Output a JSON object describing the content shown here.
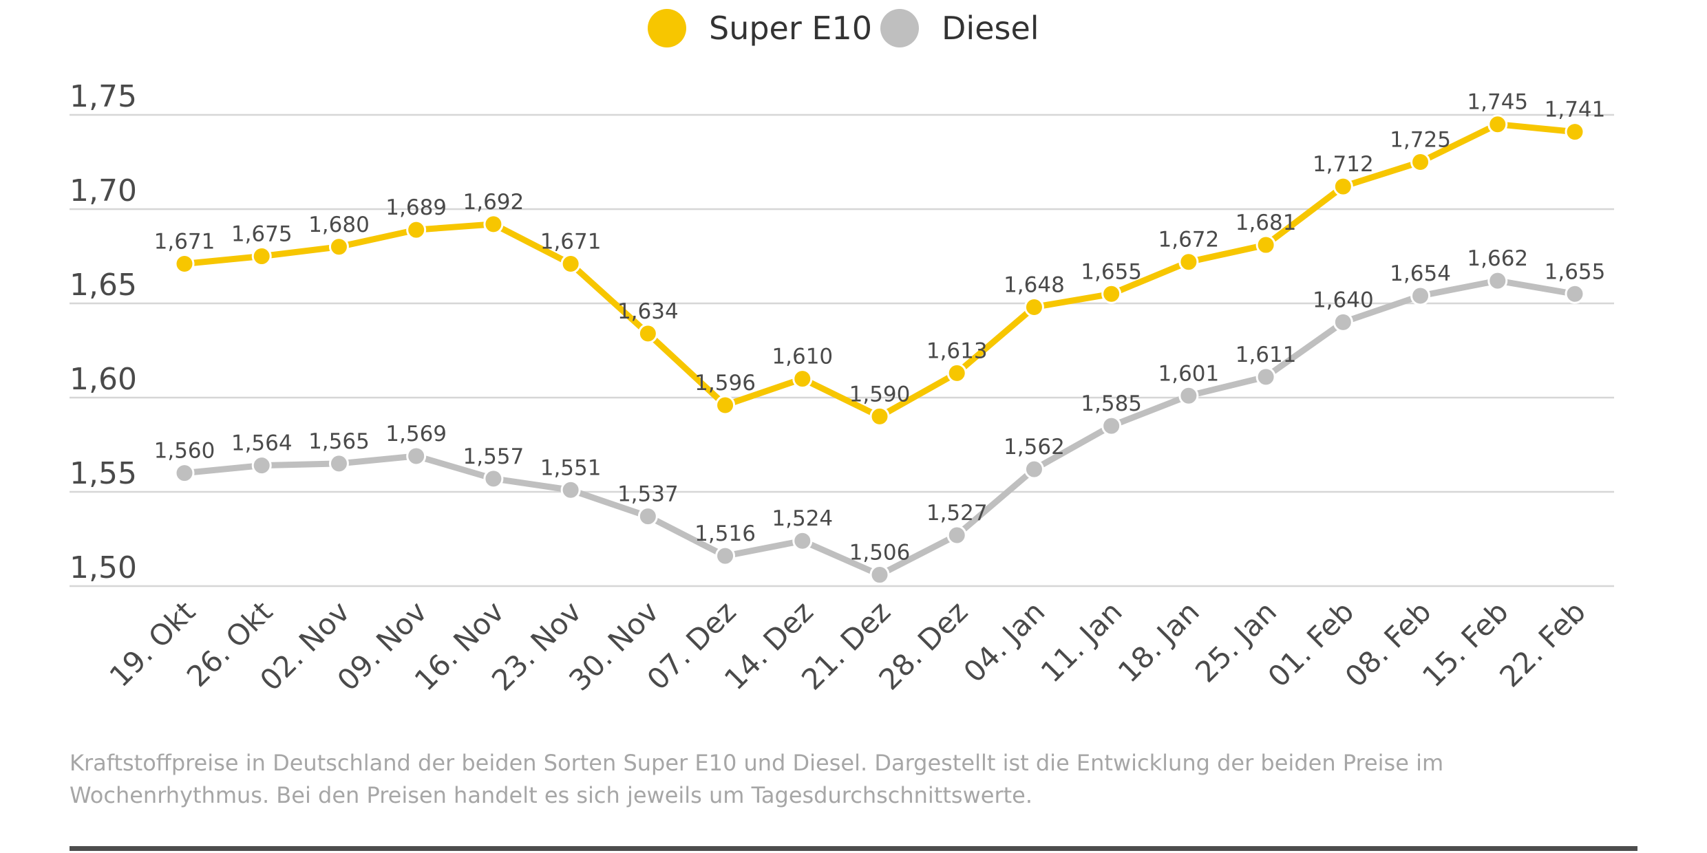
{
  "chart_data": {
    "type": "line",
    "categories": [
      "19. Okt",
      "26. Okt",
      "02. Nov",
      "09. Nov",
      "16. Nov",
      "23. Nov",
      "30. Nov",
      "07. Dez",
      "14. Dez",
      "21. Dez",
      "28. Dez",
      "04. Jan",
      "11. Jan",
      "18. Jan",
      "25. Jan",
      "01. Feb",
      "08. Feb",
      "15. Feb",
      "22. Feb"
    ],
    "series": [
      {
        "name": "Super E10",
        "color": "#f7c600",
        "values": [
          1.671,
          1.675,
          1.68,
          1.689,
          1.692,
          1.671,
          1.634,
          1.596,
          1.61,
          1.59,
          1.613,
          1.648,
          1.655,
          1.672,
          1.681,
          1.712,
          1.725,
          1.745,
          1.741
        ],
        "labels": [
          "1,671",
          "1,675",
          "1,680",
          "1,689",
          "1,692",
          "1,671",
          "1,634",
          "1,596",
          "1,610",
          "1,590",
          "1,613",
          "1,648",
          "1,655",
          "1,672",
          "1,681",
          "1,712",
          "1,725",
          "1,745",
          "1,741"
        ]
      },
      {
        "name": "Diesel",
        "color": "#bfbfbf",
        "values": [
          1.56,
          1.564,
          1.565,
          1.569,
          1.557,
          1.551,
          1.537,
          1.516,
          1.524,
          1.506,
          1.527,
          1.562,
          1.585,
          1.601,
          1.611,
          1.64,
          1.654,
          1.662,
          1.655
        ],
        "labels": [
          "1,560",
          "1,564",
          "1,565",
          "1,569",
          "1,557",
          "1,551",
          "1,537",
          "1,516",
          "1,524",
          "1,506",
          "1,527",
          "1,562",
          "1,585",
          "1,601",
          "1,611",
          "1,640",
          "1,654",
          "1,662",
          "1,655"
        ]
      }
    ],
    "yticks": [
      1.5,
      1.55,
      1.6,
      1.65,
      1.7,
      1.75
    ],
    "ytick_labels": [
      "1,50",
      "1,55",
      "1,60",
      "1,65",
      "1,70",
      "1,75"
    ],
    "ylim": [
      1.5,
      1.75
    ],
    "grid": true,
    "legend_position": "top-center",
    "title": "",
    "xlabel": "",
    "ylabel": ""
  },
  "caption": "Kraftstoffpreise in Deutschland der beiden Sorten Super E10 und Diesel. Dargestellt ist die Entwicklung der beiden Preise im Wochenrhythmus. Bei den Preisen handelt es sich jeweils um Tagesdurchschnittswerte."
}
